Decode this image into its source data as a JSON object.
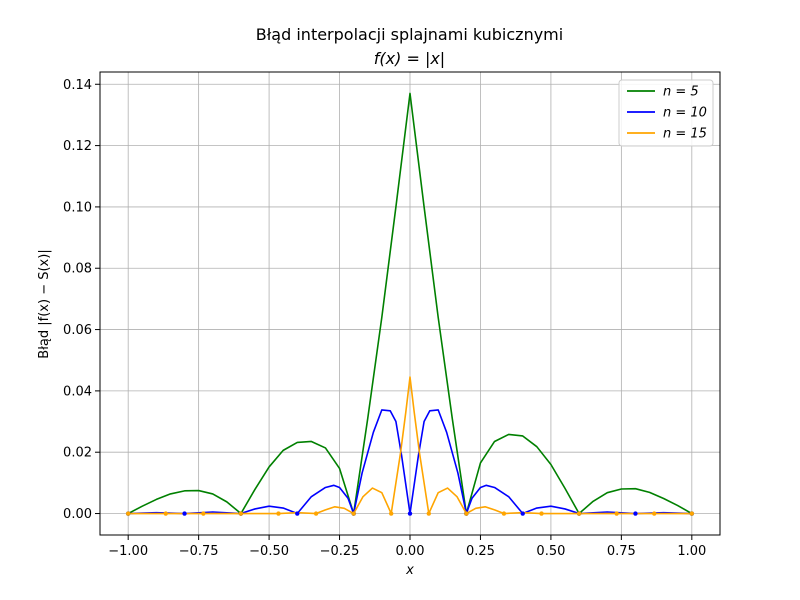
{
  "chart_data": {
    "type": "line",
    "title": "Błąd interpolacji splajnami kubicznymi",
    "subtitle": "f(x) = |x|",
    "xlabel": "x",
    "ylabel": "Błąd |f(x) − S(x)|",
    "xlim": [
      -1.1,
      1.1
    ],
    "ylim": [
      -0.007,
      0.144
    ],
    "xticks": [
      -1.0,
      -0.75,
      -0.5,
      -0.25,
      0.0,
      0.25,
      0.5,
      0.75,
      1.0
    ],
    "xtick_labels": [
      "−1.00",
      "−0.75",
      "−0.50",
      "−0.25",
      "0.00",
      "0.25",
      "0.50",
      "0.75",
      "1.00"
    ],
    "yticks": [
      0.0,
      0.02,
      0.04,
      0.06,
      0.08,
      0.1,
      0.12,
      0.14
    ],
    "ytick_labels": [
      "0.00",
      "0.02",
      "0.04",
      "0.06",
      "0.08",
      "0.10",
      "0.12",
      "0.14"
    ],
    "grid": true,
    "legend_position": "top-right",
    "series": [
      {
        "name": "n = 5",
        "color": "#008000",
        "nodes": [
          -1.0,
          -0.6,
          -0.2,
          0.2,
          0.6,
          1.0
        ],
        "x": [
          -1.0,
          -0.95,
          -0.9,
          -0.85,
          -0.8,
          -0.75,
          -0.7,
          -0.65,
          -0.6,
          -0.55,
          -0.5,
          -0.45,
          -0.4,
          -0.35,
          -0.3,
          -0.25,
          -0.2,
          -0.15,
          -0.1,
          -0.05,
          0.0,
          0.05,
          0.1,
          0.15,
          0.2,
          0.25,
          0.3,
          0.35,
          0.4,
          0.45,
          0.5,
          0.55,
          0.6,
          0.65,
          0.7,
          0.75,
          0.8,
          0.85,
          0.9,
          0.95,
          1.0
        ],
        "values": [
          0.0,
          0.0024,
          0.0046,
          0.0064,
          0.0074,
          0.0075,
          0.0064,
          0.0038,
          0.0,
          0.0079,
          0.0152,
          0.0206,
          0.0232,
          0.0235,
          0.0214,
          0.0147,
          0.0,
          0.031,
          0.064,
          0.1,
          0.137,
          0.1,
          0.064,
          0.031,
          0.0,
          0.0165,
          0.0235,
          0.0258,
          0.0253,
          0.0218,
          0.016,
          0.0082,
          0.0,
          0.004,
          0.0068,
          0.008,
          0.0081,
          0.0069,
          0.0049,
          0.0026,
          0.0
        ]
      },
      {
        "name": "n = 10",
        "color": "#0000ff",
        "nodes": [
          -1.0,
          -0.8,
          -0.6,
          -0.4,
          -0.2,
          0.0,
          0.2,
          0.4,
          0.6,
          0.8,
          1.0
        ],
        "x": [
          -1.0,
          -0.9,
          -0.8,
          -0.7,
          -0.6,
          -0.55,
          -0.5,
          -0.45,
          -0.4,
          -0.35,
          -0.3,
          -0.27,
          -0.25,
          -0.22,
          -0.2,
          -0.17,
          -0.13,
          -0.1,
          -0.07,
          -0.05,
          -0.03,
          0.0,
          0.03,
          0.05,
          0.07,
          0.1,
          0.13,
          0.17,
          0.2,
          0.22,
          0.25,
          0.27,
          0.3,
          0.35,
          0.4,
          0.45,
          0.5,
          0.55,
          0.6,
          0.7,
          0.8,
          0.9,
          1.0
        ],
        "values": [
          0.0,
          0.0003,
          0.0,
          0.0005,
          0.0,
          0.0015,
          0.0024,
          0.0018,
          0.0,
          0.0055,
          0.0085,
          0.0092,
          0.0085,
          0.005,
          0.0,
          0.0132,
          0.0265,
          0.0338,
          0.0335,
          0.03,
          0.019,
          0.0,
          0.019,
          0.03,
          0.0335,
          0.0338,
          0.0265,
          0.0132,
          0.0,
          0.005,
          0.0085,
          0.0092,
          0.0085,
          0.0055,
          0.0,
          0.0018,
          0.0024,
          0.0015,
          0.0,
          0.0005,
          0.0,
          0.0003,
          0.0
        ]
      },
      {
        "name": "n = 15",
        "color": "#ffa500",
        "nodes": [
          -1.0,
          -0.8667,
          -0.7333,
          -0.6,
          -0.4667,
          -0.3333,
          -0.2,
          -0.0667,
          0.0667,
          0.2,
          0.3333,
          0.4667,
          0.6,
          0.7333,
          0.8667,
          1.0
        ],
        "x": [
          -1.0,
          -0.8667,
          -0.7333,
          -0.6,
          -0.4667,
          -0.4,
          -0.3333,
          -0.3,
          -0.2667,
          -0.2333,
          -0.2,
          -0.1667,
          -0.1333,
          -0.1,
          -0.0667,
          -0.0333,
          -0.015,
          0.0,
          0.015,
          0.0333,
          0.0667,
          0.1,
          0.1333,
          0.1667,
          0.2,
          0.2333,
          0.2667,
          0.3,
          0.3333,
          0.4,
          0.4667,
          0.6,
          0.7333,
          0.8667,
          1.0
        ],
        "values": [
          0.0,
          0.0,
          0.0,
          0.0,
          0.0,
          0.0003,
          0.0,
          0.0012,
          0.0022,
          0.0017,
          0.0,
          0.0055,
          0.0083,
          0.0068,
          0.0,
          0.02,
          0.033,
          0.0445,
          0.033,
          0.02,
          0.0,
          0.0068,
          0.0083,
          0.0055,
          0.0,
          0.0017,
          0.0022,
          0.0012,
          0.0,
          0.0003,
          0.0,
          0.0,
          0.0,
          0.0,
          0.0
        ]
      }
    ]
  }
}
